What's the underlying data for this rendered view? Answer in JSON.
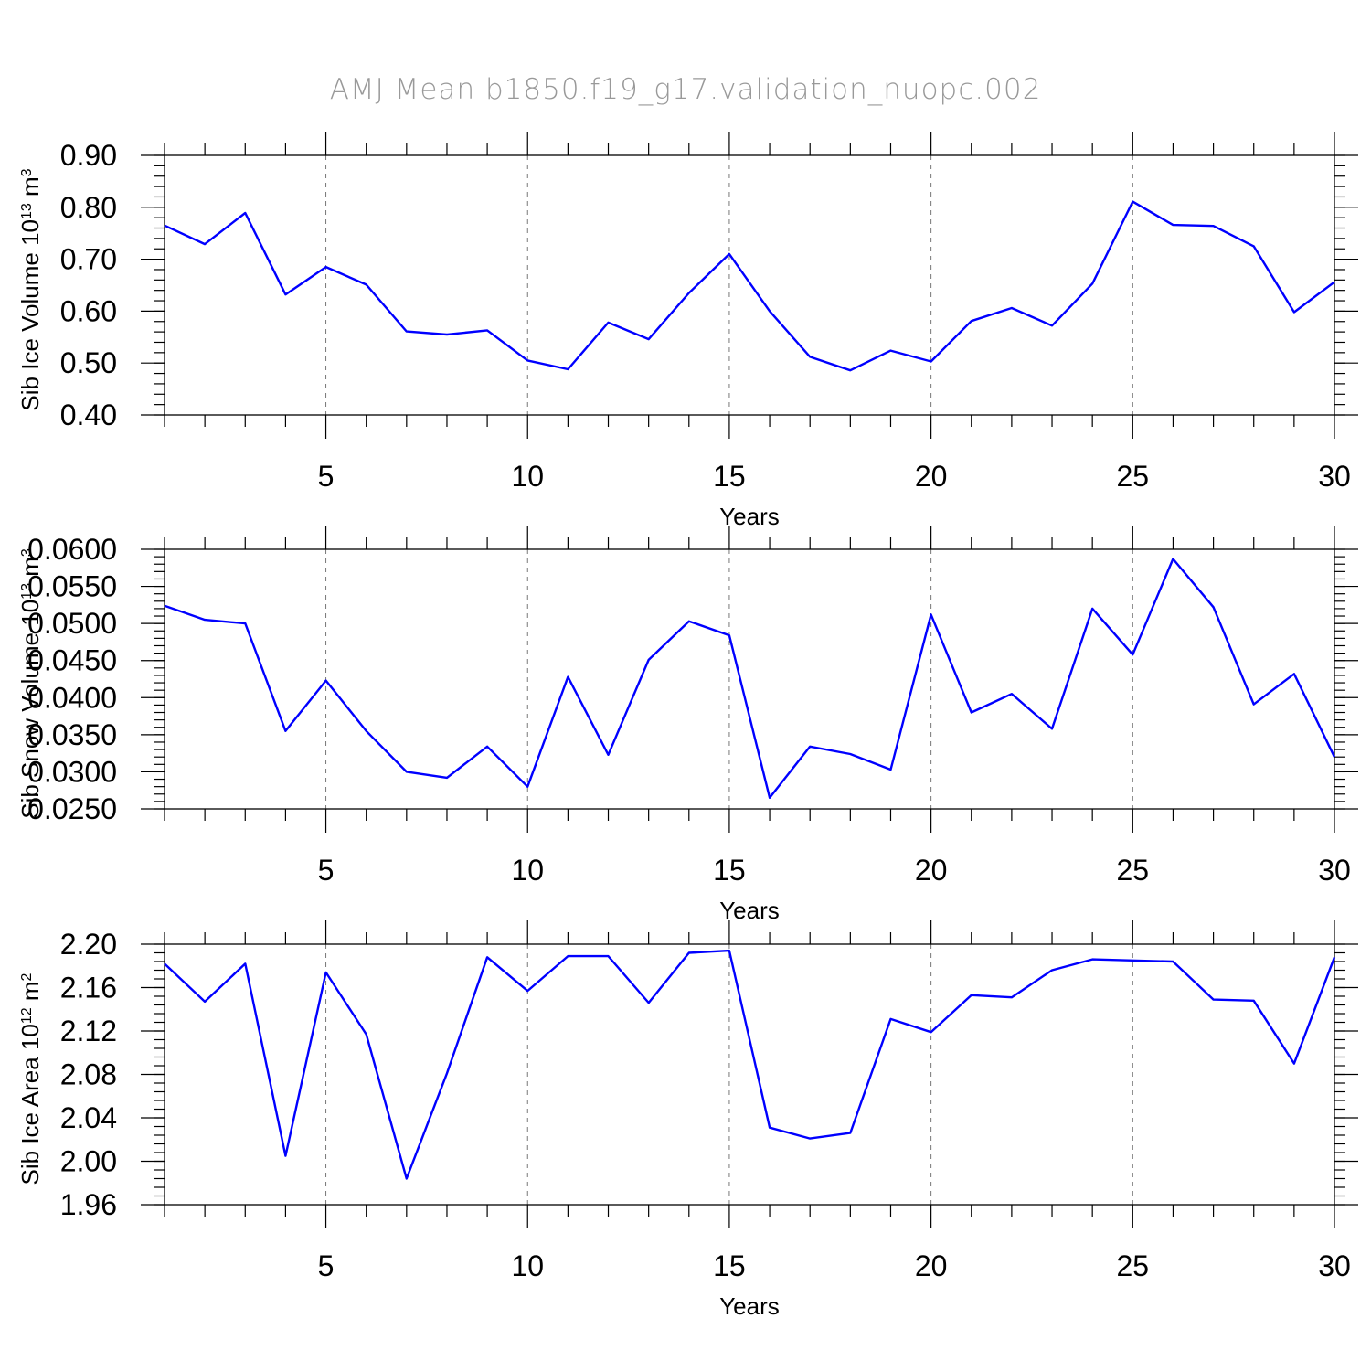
{
  "title": "AMJ Mean b1850.f19_g17.validation_nuopc.002",
  "chart_data": [
    {
      "type": "line",
      "title": "",
      "xlabel": "Years",
      "ylabel_parts": [
        "Sib Ice Volume 10",
        "13",
        " m",
        "3"
      ],
      "x": [
        1,
        2,
        3,
        4,
        5,
        6,
        7,
        8,
        9,
        10,
        11,
        12,
        13,
        14,
        15,
        16,
        17,
        18,
        19,
        20,
        21,
        22,
        23,
        24,
        25,
        26,
        27,
        28,
        29,
        30
      ],
      "series": [
        {
          "values": [
            0.765,
            0.729,
            0.789,
            0.632,
            0.685,
            0.651,
            0.561,
            0.555,
            0.563,
            0.505,
            0.488,
            0.578,
            0.546,
            0.635,
            0.71,
            0.6,
            0.512,
            0.486,
            0.524,
            0.503,
            0.581,
            0.606,
            0.572,
            0.653,
            0.811,
            0.766,
            0.764,
            0.725,
            0.598,
            0.656
          ],
          "color": "#0000ff"
        }
      ],
      "xlim": [
        1,
        30
      ],
      "ylim": [
        0.4,
        0.9
      ],
      "xticks": [
        5,
        10,
        15,
        20,
        25,
        30
      ],
      "xtick_labels": [
        "5",
        "10",
        "15",
        "20",
        "25",
        "30"
      ],
      "yticks": [
        0.4,
        0.5,
        0.6,
        0.7,
        0.8,
        0.9
      ],
      "ytick_labels": [
        "0.40",
        "0.50",
        "0.60",
        "0.70",
        "0.80",
        "0.90"
      ],
      "y_minor_step": 0.02,
      "grid": "vertical-dashed"
    },
    {
      "type": "line",
      "title": "",
      "xlabel": "Years",
      "ylabel_parts": [
        "Sib Snow Volume 10",
        "13",
        " m",
        "3"
      ],
      "x": [
        1,
        2,
        3,
        4,
        5,
        6,
        7,
        8,
        9,
        10,
        11,
        12,
        13,
        14,
        15,
        16,
        17,
        18,
        19,
        20,
        21,
        22,
        23,
        24,
        25,
        26,
        27,
        28,
        29,
        30
      ],
      "series": [
        {
          "values": [
            0.0524,
            0.0505,
            0.05,
            0.0355,
            0.0423,
            0.0355,
            0.03,
            0.0292,
            0.0334,
            0.028,
            0.0428,
            0.0323,
            0.0451,
            0.0503,
            0.0484,
            0.0265,
            0.0334,
            0.0324,
            0.0303,
            0.0512,
            0.038,
            0.0405,
            0.0358,
            0.052,
            0.0458,
            0.0587,
            0.0522,
            0.0391,
            0.0432,
            0.032
          ],
          "color": "#0000ff"
        }
      ],
      "xlim": [
        1,
        30
      ],
      "ylim": [
        0.025,
        0.06
      ],
      "xticks": [
        5,
        10,
        15,
        20,
        25,
        30
      ],
      "xtick_labels": [
        "5",
        "10",
        "15",
        "20",
        "25",
        "30"
      ],
      "yticks": [
        0.025,
        0.03,
        0.035,
        0.04,
        0.045,
        0.05,
        0.055,
        0.06
      ],
      "ytick_labels": [
        "0.0250",
        "0.0300",
        "0.0350",
        "0.0400",
        "0.0450",
        "0.0500",
        "0.0550",
        "0.0600"
      ],
      "y_minor_step": 0.001,
      "grid": "vertical-dashed"
    },
    {
      "type": "line",
      "title": "",
      "xlabel": "Years",
      "ylabel_parts": [
        "Sib Ice Area 10",
        "12",
        " m",
        "2"
      ],
      "x": [
        1,
        2,
        3,
        4,
        5,
        6,
        7,
        8,
        9,
        10,
        11,
        12,
        13,
        14,
        15,
        16,
        17,
        18,
        19,
        20,
        21,
        22,
        23,
        24,
        25,
        26,
        27,
        28,
        29,
        30
      ],
      "series": [
        {
          "values": [
            2.182,
            2.147,
            2.182,
            2.005,
            2.174,
            2.117,
            1.984,
            2.081,
            2.188,
            2.157,
            2.189,
            2.189,
            2.146,
            2.192,
            2.194,
            2.031,
            2.021,
            2.026,
            2.131,
            2.119,
            2.153,
            2.151,
            2.176,
            2.186,
            2.185,
            2.184,
            2.149,
            2.148,
            2.09,
            2.188
          ],
          "color": "#0000ff"
        }
      ],
      "xlim": [
        1,
        30
      ],
      "ylim": [
        1.96,
        2.2
      ],
      "xticks": [
        5,
        10,
        15,
        20,
        25,
        30
      ],
      "xtick_labels": [
        "5",
        "10",
        "15",
        "20",
        "25",
        "30"
      ],
      "yticks": [
        1.96,
        2.0,
        2.04,
        2.08,
        2.12,
        2.16,
        2.2
      ],
      "ytick_labels": [
        "1.96",
        "2.00",
        "2.04",
        "2.08",
        "2.12",
        "2.16",
        "2.20"
      ],
      "y_minor_step": 0.008,
      "grid": "vertical-dashed"
    }
  ]
}
